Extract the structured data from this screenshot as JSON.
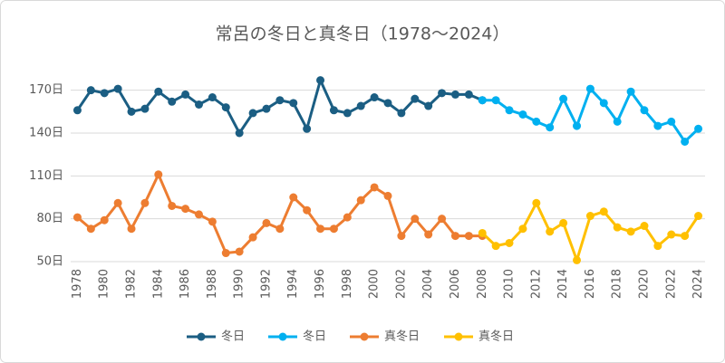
{
  "chart_data": {
    "type": "line",
    "title": "常呂の冬日と真冬日（1978～2024）",
    "categories": [
      "1978",
      null,
      "1980",
      null,
      "1982",
      null,
      "1984",
      null,
      "1986",
      null,
      "1988",
      null,
      "1990",
      null,
      "1992",
      null,
      "1994",
      null,
      "1996",
      null,
      "1998",
      null,
      "2000",
      null,
      "2002",
      null,
      "2004",
      null,
      "2006",
      null,
      "2008",
      null,
      "2010",
      null,
      "2012",
      null,
      "2014",
      null,
      "2016",
      null,
      "2018",
      null,
      "2020",
      null,
      "2022",
      null,
      "2024"
    ],
    "series": [
      {
        "name": "冬日",
        "color": "#1b5e83",
        "values": [
          156,
          170,
          168,
          171,
          155,
          157,
          169,
          162,
          167,
          160,
          165,
          158,
          140,
          154,
          157,
          163,
          161,
          143,
          177,
          156,
          154,
          159,
          165,
          161,
          154,
          164,
          159,
          168,
          167,
          167,
          163,
          null,
          null,
          null,
          null,
          null,
          null,
          null,
          null,
          null,
          null,
          null,
          null,
          null,
          null,
          null,
          null
        ]
      },
      {
        "name": "冬日",
        "color": "#00b0f0",
        "values": [
          null,
          null,
          null,
          null,
          null,
          null,
          null,
          null,
          null,
          null,
          null,
          null,
          null,
          null,
          null,
          null,
          null,
          null,
          null,
          null,
          null,
          null,
          null,
          null,
          null,
          null,
          null,
          null,
          null,
          null,
          163,
          163,
          156,
          153,
          148,
          144,
          164,
          145,
          171,
          161,
          148,
          169,
          156,
          145,
          148,
          134,
          143
        ]
      },
      {
        "name": "真冬日",
        "color": "#ed7d31",
        "values": [
          81,
          73,
          79,
          91,
          73,
          91,
          111,
          89,
          87,
          83,
          78,
          56,
          57,
          67,
          77,
          73,
          95,
          86,
          73,
          73,
          81,
          93,
          102,
          96,
          68,
          80,
          69,
          80,
          68,
          68,
          68,
          null,
          null,
          null,
          null,
          null,
          null,
          null,
          null,
          null,
          null,
          null,
          null,
          null,
          null,
          null,
          null
        ]
      },
      {
        "name": "真冬日",
        "color": "#ffc000",
        "values": [
          null,
          null,
          null,
          null,
          null,
          null,
          null,
          null,
          null,
          null,
          null,
          null,
          null,
          null,
          null,
          null,
          null,
          null,
          null,
          null,
          null,
          null,
          null,
          null,
          null,
          null,
          null,
          null,
          null,
          null,
          70,
          61,
          63,
          73,
          91,
          71,
          77,
          51,
          82,
          85,
          74,
          71,
          75,
          61,
          69,
          68,
          82
        ]
      }
    ],
    "ylim": [
      50,
      185
    ],
    "yticks": [
      {
        "value": 50,
        "label": "50日"
      },
      {
        "value": 80,
        "label": "80日"
      },
      {
        "value": 110,
        "label": "110日"
      },
      {
        "value": 140,
        "label": "140日"
      },
      {
        "value": 170,
        "label": "170日"
      }
    ],
    "grid": true,
    "legend": "bottom"
  }
}
